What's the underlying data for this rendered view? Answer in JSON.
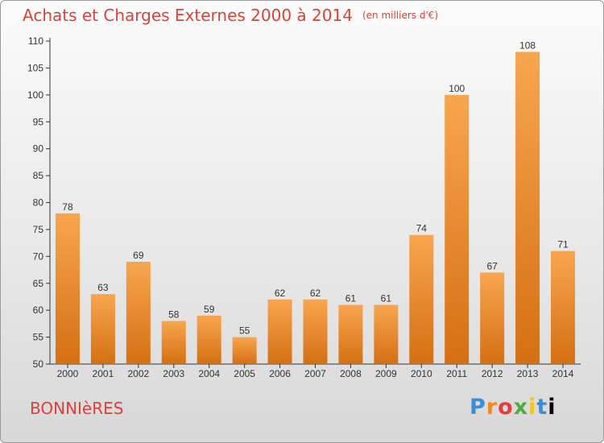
{
  "header": {
    "title": "Achats et Charges Externes 2000 à 2014",
    "unit": "(en milliers d'€)"
  },
  "footer": {
    "commune": "BONNIèRES",
    "logo_letters": [
      "P",
      "r",
      "o",
      "x",
      "i",
      "t",
      "i"
    ]
  },
  "colors": {
    "bar_top": "#f7a64f",
    "bar_bottom": "#d56f13",
    "title": "#d9433c",
    "axis": "#333333"
  },
  "chart_data": {
    "type": "bar",
    "title": "Achats et Charges Externes 2000 à 2014",
    "subtitle": "(en milliers d'€)",
    "xlabel": "",
    "ylabel": "",
    "categories": [
      "2000",
      "2001",
      "2002",
      "2003",
      "2004",
      "2005",
      "2006",
      "2007",
      "2008",
      "2009",
      "2010",
      "2011",
      "2012",
      "2013",
      "2014"
    ],
    "values": [
      78,
      63,
      69,
      58,
      59,
      55,
      62,
      62,
      61,
      61,
      74,
      100,
      67,
      108,
      71
    ],
    "ylim": [
      50,
      110
    ],
    "yticks": [
      50,
      55,
      60,
      65,
      70,
      75,
      80,
      85,
      90,
      95,
      100,
      105,
      110
    ],
    "grid": false,
    "legend": "none"
  }
}
